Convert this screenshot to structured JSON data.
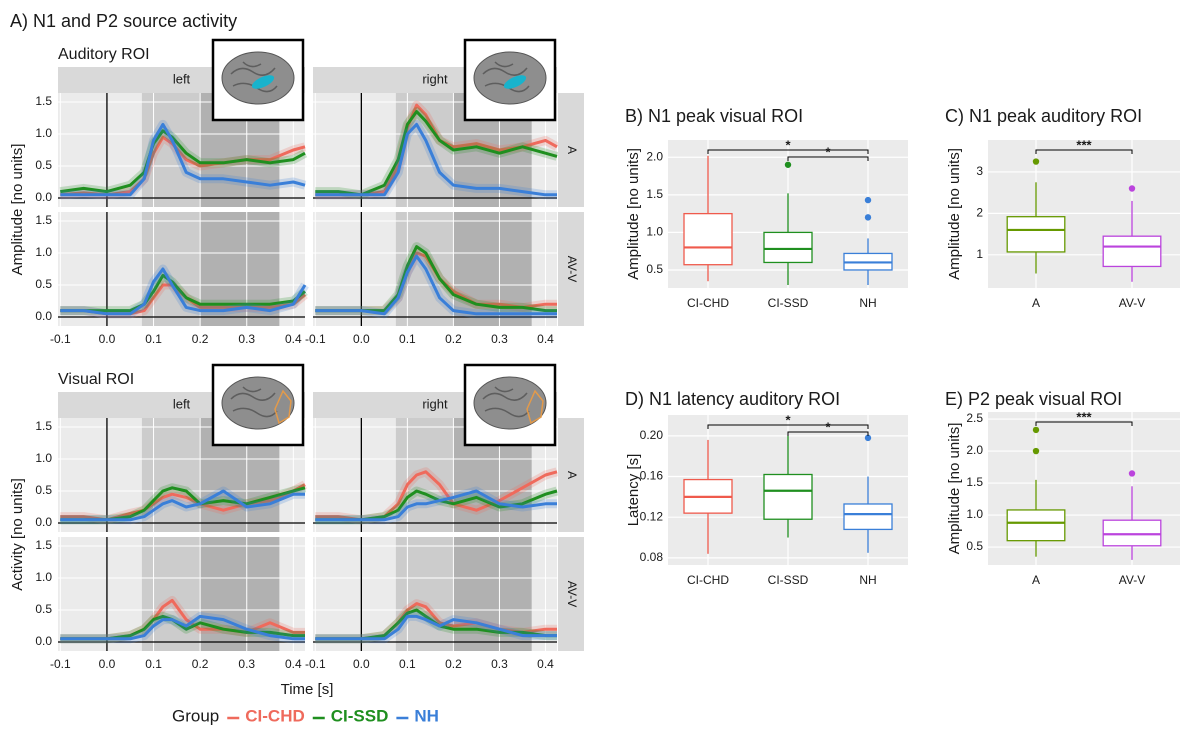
{
  "chart_data": [
    {
      "type": "line",
      "title": "A) N1 and P2 source activity",
      "xlabel": "Time [s]",
      "legend_title": "Group",
      "x": [
        -0.1,
        -0.05,
        0,
        0.05,
        0.08,
        0.1,
        0.12,
        0.14,
        0.17,
        0.2,
        0.25,
        0.3,
        0.35,
        0.4,
        0.425
      ],
      "xlim": [
        -0.105,
        0.425
      ],
      "xticks": [
        -0.1,
        {
          "value": 0,
          "label": "0.0"
        },
        0.1,
        0.2,
        0.3,
        0.4
      ],
      "ylim": [
        -0.14,
        1.64
      ],
      "yticks": [
        {
          "value": 0,
          "label": "0.0"
        },
        0.5,
        {
          "value": 1,
          "label": "1.0"
        },
        1.5
      ],
      "shaded": [
        [
          0.075,
          0.37
        ],
        [
          0.2,
          0.37
        ]
      ],
      "grid": true,
      "columns": [
        "left",
        "right"
      ],
      "rows": [
        "A",
        "AV-V"
      ],
      "blocks": [
        {
          "label": "Auditory ROI",
          "ylabel": "Amplitude [no units]",
          "panels": [
            [
              [
                {
                  "name": "CI-CHD",
                  "color": "#ef6a5c",
                  "values": [
                    0.05,
                    0.08,
                    0.05,
                    0.1,
                    0.3,
                    0.7,
                    0.95,
                    0.85,
                    0.6,
                    0.5,
                    0.55,
                    0.6,
                    0.6,
                    0.75,
                    0.8
                  ]
                },
                {
                  "name": "CI-SSD",
                  "color": "#1f8f1f",
                  "values": [
                    0.1,
                    0.15,
                    0.1,
                    0.2,
                    0.4,
                    0.85,
                    1.05,
                    0.95,
                    0.7,
                    0.55,
                    0.55,
                    0.6,
                    0.55,
                    0.6,
                    0.7
                  ]
                },
                {
                  "name": "NH",
                  "color": "#3a7fd8",
                  "values": [
                    0.05,
                    0.05,
                    0.05,
                    0.05,
                    0.3,
                    0.9,
                    1.15,
                    0.9,
                    0.4,
                    0.3,
                    0.3,
                    0.25,
                    0.2,
                    0.25,
                    0.2
                  ]
                }
              ],
              [
                {
                  "name": "CI-CHD",
                  "color": "#ef6a5c",
                  "values": [
                    0.05,
                    0.05,
                    0.05,
                    0.1,
                    0.5,
                    1.1,
                    1.45,
                    1.3,
                    0.9,
                    0.8,
                    0.85,
                    0.75,
                    0.8,
                    0.9,
                    0.8
                  ]
                },
                {
                  "name": "CI-SSD",
                  "color": "#1f8f1f",
                  "values": [
                    0.1,
                    0.1,
                    0.05,
                    0.2,
                    0.6,
                    1.15,
                    1.35,
                    1.2,
                    0.9,
                    0.75,
                    0.8,
                    0.7,
                    0.8,
                    0.7,
                    0.65
                  ]
                },
                {
                  "name": "NH",
                  "color": "#3a7fd8",
                  "values": [
                    0.05,
                    0.05,
                    0.05,
                    0.05,
                    0.4,
                    1.0,
                    1.15,
                    0.9,
                    0.4,
                    0.2,
                    0.15,
                    0.15,
                    0.1,
                    0.05,
                    0.05
                  ]
                }
              ]
            ],
            [
              [
                {
                  "name": "CI-CHD",
                  "color": "#ef6a5c",
                  "values": [
                    0.1,
                    0.1,
                    0.05,
                    0.05,
                    0.1,
                    0.3,
                    0.5,
                    0.5,
                    0.3,
                    0.15,
                    0.15,
                    0.15,
                    0.15,
                    0.2,
                    0.35
                  ]
                },
                {
                  "name": "CI-SSD",
                  "color": "#1f8f1f",
                  "values": [
                    0.1,
                    0.1,
                    0.1,
                    0.1,
                    0.2,
                    0.4,
                    0.65,
                    0.55,
                    0.3,
                    0.2,
                    0.2,
                    0.2,
                    0.2,
                    0.25,
                    0.4
                  ]
                },
                {
                  "name": "NH",
                  "color": "#3a7fd8",
                  "values": [
                    0.1,
                    0.1,
                    0.05,
                    0.05,
                    0.2,
                    0.55,
                    0.75,
                    0.5,
                    0.15,
                    0.1,
                    0.1,
                    0.15,
                    0.1,
                    0.2,
                    0.5
                  ]
                }
              ],
              [
                {
                  "name": "CI-CHD",
                  "color": "#ef6a5c",
                  "values": [
                    0.1,
                    0.1,
                    0.1,
                    0.1,
                    0.3,
                    0.7,
                    1.0,
                    0.95,
                    0.6,
                    0.4,
                    0.2,
                    0.2,
                    0.15,
                    0.2,
                    0.2
                  ]
                },
                {
                  "name": "CI-SSD",
                  "color": "#1f8f1f",
                  "values": [
                    0.1,
                    0.1,
                    0.1,
                    0.1,
                    0.35,
                    0.8,
                    1.1,
                    1.0,
                    0.6,
                    0.35,
                    0.2,
                    0.15,
                    0.15,
                    0.1,
                    0.1
                  ]
                },
                {
                  "name": "NH",
                  "color": "#3a7fd8",
                  "values": [
                    0.1,
                    0.1,
                    0.1,
                    0.05,
                    0.3,
                    0.7,
                    0.95,
                    0.75,
                    0.3,
                    0.1,
                    0.05,
                    0.05,
                    0.05,
                    0.05,
                    0.05
                  ]
                }
              ]
            ]
          ]
        },
        {
          "label": "Visual ROI",
          "ylabel": "Activity [no units]",
          "panels": [
            [
              [
                {
                  "name": "CI-CHD",
                  "color": "#ef6a5c",
                  "values": [
                    0.1,
                    0.1,
                    0.05,
                    0.15,
                    0.2,
                    0.3,
                    0.4,
                    0.45,
                    0.4,
                    0.3,
                    0.2,
                    0.3,
                    0.35,
                    0.5,
                    0.6
                  ]
                },
                {
                  "name": "CI-SSD",
                  "color": "#1f8f1f",
                  "values": [
                    0.05,
                    0.05,
                    0.05,
                    0.1,
                    0.2,
                    0.35,
                    0.5,
                    0.55,
                    0.5,
                    0.3,
                    0.35,
                    0.3,
                    0.4,
                    0.5,
                    0.55
                  ]
                },
                {
                  "name": "NH",
                  "color": "#3a7fd8",
                  "values": [
                    0.05,
                    0.05,
                    0.05,
                    0.05,
                    0.1,
                    0.2,
                    0.3,
                    0.35,
                    0.25,
                    0.3,
                    0.5,
                    0.25,
                    0.3,
                    0.45,
                    0.45
                  ]
                }
              ],
              [
                {
                  "name": "CI-CHD",
                  "color": "#ef6a5c",
                  "values": [
                    0.1,
                    0.1,
                    0.05,
                    0.1,
                    0.3,
                    0.6,
                    0.75,
                    0.8,
                    0.6,
                    0.3,
                    0.2,
                    0.35,
                    0.55,
                    0.75,
                    0.8
                  ]
                },
                {
                  "name": "CI-SSD",
                  "color": "#1f8f1f",
                  "values": [
                    0.05,
                    0.05,
                    0.05,
                    0.1,
                    0.2,
                    0.4,
                    0.5,
                    0.45,
                    0.35,
                    0.3,
                    0.4,
                    0.25,
                    0.3,
                    0.45,
                    0.5
                  ]
                },
                {
                  "name": "NH",
                  "color": "#3a7fd8",
                  "values": [
                    0.05,
                    0.05,
                    0.05,
                    0.05,
                    0.1,
                    0.25,
                    0.3,
                    0.3,
                    0.35,
                    0.4,
                    0.5,
                    0.3,
                    0.25,
                    0.3,
                    0.3
                  ]
                }
              ]
            ],
            [
              [
                {
                  "name": "CI-CHD",
                  "color": "#ef6a5c",
                  "values": [
                    0.05,
                    0.05,
                    0.05,
                    0.1,
                    0.2,
                    0.35,
                    0.55,
                    0.65,
                    0.35,
                    0.2,
                    0.2,
                    0.15,
                    0.3,
                    0.15,
                    0.15
                  ]
                },
                {
                  "name": "CI-SSD",
                  "color": "#1f8f1f",
                  "values": [
                    0.05,
                    0.05,
                    0.05,
                    0.1,
                    0.2,
                    0.35,
                    0.4,
                    0.35,
                    0.2,
                    0.3,
                    0.2,
                    0.15,
                    0.15,
                    0.1,
                    0.1
                  ]
                },
                {
                  "name": "NH",
                  "color": "#3a7fd8",
                  "values": [
                    0.05,
                    0.05,
                    0.05,
                    0.05,
                    0.1,
                    0.25,
                    0.35,
                    0.35,
                    0.25,
                    0.4,
                    0.35,
                    0.2,
                    0.1,
                    0.05,
                    0.05
                  ]
                }
              ],
              [
                {
                  "name": "CI-CHD",
                  "color": "#ef6a5c",
                  "values": [
                    0.05,
                    0.05,
                    0.05,
                    0.1,
                    0.3,
                    0.5,
                    0.6,
                    0.55,
                    0.3,
                    0.25,
                    0.3,
                    0.2,
                    0.15,
                    0.2,
                    0.2
                  ]
                },
                {
                  "name": "CI-SSD",
                  "color": "#1f8f1f",
                  "values": [
                    0.05,
                    0.05,
                    0.05,
                    0.1,
                    0.3,
                    0.45,
                    0.5,
                    0.4,
                    0.25,
                    0.2,
                    0.2,
                    0.15,
                    0.15,
                    0.1,
                    0.1
                  ]
                },
                {
                  "name": "NH",
                  "color": "#3a7fd8",
                  "values": [
                    0.05,
                    0.05,
                    0.05,
                    0.05,
                    0.2,
                    0.4,
                    0.4,
                    0.35,
                    0.25,
                    0.35,
                    0.3,
                    0.2,
                    0.1,
                    0.1,
                    0.1
                  ]
                }
              ]
            ]
          ]
        }
      ]
    },
    {
      "type": "box",
      "title": "B) N1 peak visual ROI",
      "ylabel": "Amplitude [no units]",
      "categories": [
        "CI-CHD",
        "CI-SSD",
        "NH"
      ],
      "colors": [
        "#ef5a4c",
        "#1f8f1f",
        "#3a7fd8"
      ],
      "boxes": [
        {
          "min": 0.35,
          "q1": 0.57,
          "median": 0.8,
          "q3": 1.25,
          "max": 2.02,
          "outliers": []
        },
        {
          "min": 0.3,
          "q1": 0.6,
          "median": 0.78,
          "q3": 1.0,
          "max": 1.52,
          "outliers": [
            1.9
          ]
        },
        {
          "min": 0.3,
          "q1": 0.5,
          "median": 0.6,
          "q3": 0.72,
          "max": 0.92,
          "outliers": [
            1.2,
            1.43
          ]
        }
      ],
      "ylim": [
        0.26,
        2.23
      ],
      "yticks": [
        0.5,
        {
          "value": 1,
          "label": "1.0"
        },
        1.5,
        {
          "value": 2,
          "label": "2.0"
        }
      ],
      "significance": [
        {
          "pair": [
            0,
            2
          ],
          "label": "*"
        },
        {
          "pair": [
            1,
            2
          ],
          "label": "*"
        }
      ]
    },
    {
      "type": "box",
      "title": "C) N1 peak auditory ROI",
      "ylabel": "Amplitude [no units]",
      "categories": [
        "A",
        "AV-V"
      ],
      "colors": [
        "#669900",
        "#bb44dd"
      ],
      "boxes": [
        {
          "min": 0.55,
          "q1": 1.07,
          "median": 1.6,
          "q3": 1.92,
          "max": 2.75,
          "outliers": [
            3.25
          ]
        },
        {
          "min": 0.35,
          "q1": 0.72,
          "median": 1.2,
          "q3": 1.45,
          "max": 2.3,
          "outliers": [
            2.6
          ]
        }
      ],
      "ylim": [
        0.2,
        3.77
      ],
      "yticks": [
        1,
        2,
        3
      ],
      "significance": [
        {
          "pair": [
            0,
            1
          ],
          "label": "***"
        }
      ]
    },
    {
      "type": "box",
      "title": "D) N1 latency auditory ROI",
      "ylabel": "Latency [s]",
      "categories": [
        "CI-CHD",
        "CI-SSD",
        "NH"
      ],
      "colors": [
        "#ef5a4c",
        "#1f8f1f",
        "#3a7fd8"
      ],
      "boxes": [
        {
          "min": 0.084,
          "q1": 0.124,
          "median": 0.14,
          "q3": 0.157,
          "max": 0.196,
          "outliers": []
        },
        {
          "min": 0.1,
          "q1": 0.118,
          "median": 0.146,
          "q3": 0.162,
          "max": 0.2,
          "outliers": []
        },
        {
          "min": 0.085,
          "q1": 0.108,
          "median": 0.123,
          "q3": 0.133,
          "max": 0.16,
          "outliers": [
            0.198
          ]
        }
      ],
      "ylim": [
        0.073,
        0.2205
      ],
      "yticks": [
        0.08,
        0.12,
        0.16,
        {
          "value": 0.2,
          "label": "0.20"
        }
      ],
      "significance": [
        {
          "pair": [
            0,
            2
          ],
          "label": "*"
        },
        {
          "pair": [
            1,
            2
          ],
          "label": "*"
        }
      ]
    },
    {
      "type": "box",
      "title": "E) P2 peak visual ROI",
      "ylabel": "Amplitude [no units]",
      "categories": [
        "A",
        "AV-V"
      ],
      "colors": [
        "#669900",
        "#bb44dd"
      ],
      "boxes": [
        {
          "min": 0.35,
          "q1": 0.6,
          "median": 0.88,
          "q3": 1.08,
          "max": 1.55,
          "outliers": [
            2.0,
            2.33
          ]
        },
        {
          "min": 0.3,
          "q1": 0.52,
          "median": 0.7,
          "q3": 0.92,
          "max": 1.45,
          "outliers": [
            1.65
          ]
        }
      ],
      "ylim": [
        0.22,
        2.61
      ],
      "yticks": [
        0.5,
        {
          "value": 1,
          "label": "1.0"
        },
        1.5,
        {
          "value": 2,
          "label": "2.0"
        },
        2.5
      ],
      "significance": [
        {
          "pair": [
            0,
            1
          ],
          "label": "***"
        }
      ]
    }
  ]
}
